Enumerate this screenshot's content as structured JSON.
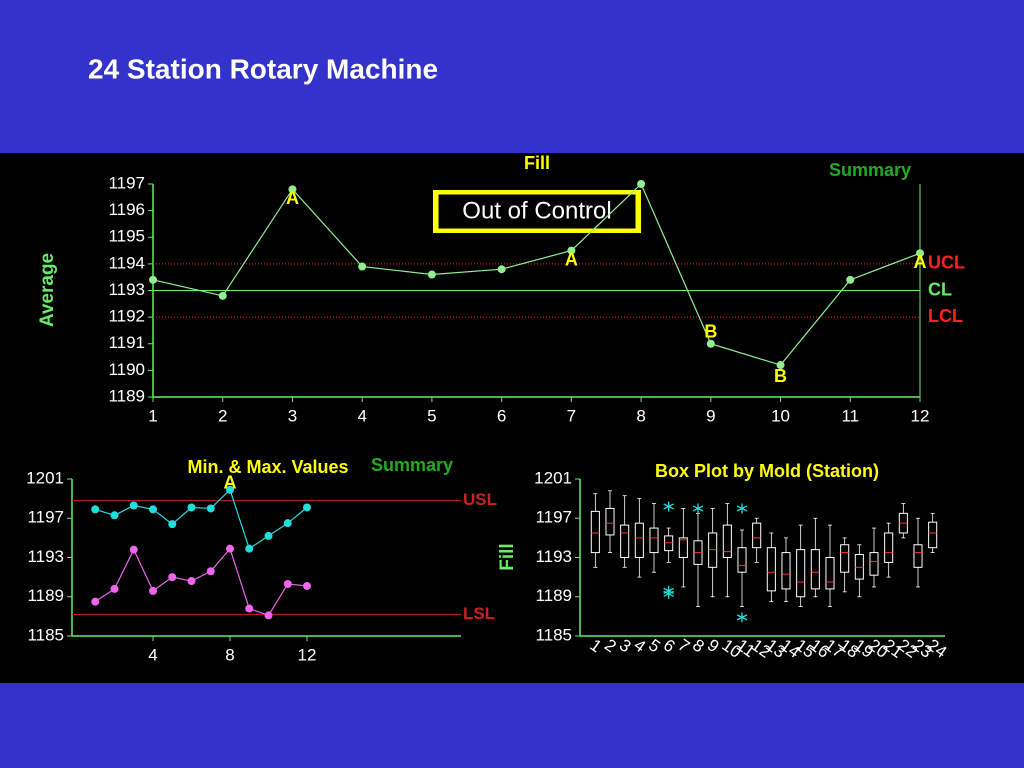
{
  "header": {
    "title": "24 Station Rotary Machine"
  },
  "chart_data": [
    {
      "type": "line",
      "title": "Fill",
      "note": "Summary",
      "y_label": "Average",
      "callout": "Out of Control",
      "x": [
        1,
        2,
        3,
        4,
        5,
        6,
        7,
        8,
        9,
        10,
        11,
        12
      ],
      "series": [
        {
          "color": "#90ee90",
          "values": [
            1193.4,
            1192.8,
            1196.8,
            1193.9,
            1193.6,
            1193.8,
            1194.5,
            1197,
            1191,
            1190.2,
            1193.4,
            1194.4
          ]
        }
      ],
      "xlim": [
        1,
        12
      ],
      "xticks": [
        1,
        2,
        3,
        4,
        5,
        6,
        7,
        8,
        9,
        10,
        11,
        12
      ],
      "ylim": [
        1189,
        1197
      ],
      "yticks": [
        1189,
        1190,
        1191,
        1192,
        1193,
        1194,
        1195,
        1196,
        1197
      ],
      "limits": [
        {
          "name": "UCL",
          "value": 1194,
          "color": "#ff2020",
          "style": "dotted"
        },
        {
          "name": "CL",
          "value": 1193,
          "color": "#66ee66",
          "style": "solid"
        },
        {
          "name": "LCL",
          "value": 1192,
          "color": "#ff2020",
          "style": "dotted"
        }
      ],
      "annotations": [
        {
          "text": "A",
          "x": 3
        },
        {
          "text": "A",
          "x": 7
        },
        {
          "text": "A",
          "x": 12
        },
        {
          "text": "B",
          "x": 9
        },
        {
          "text": "B",
          "x": 10
        }
      ]
    },
    {
      "type": "line",
      "title": "Min. & Max. Values",
      "note": "Summary",
      "x": [
        1,
        2,
        3,
        4,
        5,
        6,
        7,
        8,
        9,
        10,
        11,
        12
      ],
      "series": [
        {
          "color": "#22dddd",
          "values": [
            1197.9,
            1197.3,
            1198.3,
            1197.9,
            1196.4,
            1198.1,
            1198,
            1199.9,
            1193.9,
            1195.2,
            1196.5,
            1198.1
          ]
        },
        {
          "color": "#ee66ee",
          "values": [
            1188.5,
            1189.8,
            1193.8,
            1189.6,
            1191,
            1190.6,
            1191.6,
            1193.9,
            1187.8,
            1187.1,
            1190.3,
            1190.1
          ]
        }
      ],
      "xlim": [
        0,
        20
      ],
      "xticks": [
        4,
        8,
        12
      ],
      "ylim": [
        1185,
        1201
      ],
      "yticks": [
        1185,
        1189,
        1193,
        1197,
        1201
      ],
      "limits": [
        {
          "name": "USL",
          "value": 1198.8,
          "color": "#cc2020",
          "style": "solid"
        },
        {
          "name": "LSL",
          "value": 1187.2,
          "color": "#cc2020",
          "style": "solid"
        }
      ],
      "annotations": [
        {
          "text": "A",
          "x": 8
        }
      ]
    },
    {
      "type": "box",
      "title": "Box Plot by Mold (Station)",
      "y_label": "Fill",
      "categories": [
        "1",
        "2",
        "3",
        "4",
        "5",
        "6",
        "7",
        "8",
        "9",
        "10",
        "11",
        "12",
        "13",
        "14",
        "15",
        "16",
        "17",
        "18",
        "19",
        "20",
        "21",
        "22",
        "23",
        "24"
      ],
      "ylim": [
        1185,
        1201
      ],
      "yticks": [
        1185,
        1189,
        1193,
        1197,
        1201
      ],
      "box_color": "#ffffff",
      "median_color": "#ff3030",
      "outlier_color": "#22dddd",
      "boxes": [
        {
          "low": 1192,
          "q1": 1193.5,
          "median": 1195.5,
          "q3": 1197.7,
          "high": 1199.5,
          "outliers": []
        },
        {
          "low": 1193.5,
          "q1": 1195.3,
          "median": 1196.5,
          "q3": 1198,
          "high": 1199.8,
          "outliers": []
        },
        {
          "low": 1192,
          "q1": 1193,
          "median": 1195.5,
          "q3": 1196.3,
          "high": 1199.3,
          "outliers": []
        },
        {
          "low": 1191,
          "q1": 1193,
          "median": 1195,
          "q3": 1196.5,
          "high": 1199,
          "outliers": []
        },
        {
          "low": 1191.5,
          "q1": 1193.5,
          "median": 1195,
          "q3": 1196,
          "high": 1198.5,
          "outliers": []
        },
        {
          "low": 1192.5,
          "q1": 1193.7,
          "median": 1194.5,
          "q3": 1195.2,
          "high": 1196,
          "outliers": [
            1198.2,
            1189.6,
            1189.3
          ]
        },
        {
          "low": 1190,
          "q1": 1193,
          "median": 1194.8,
          "q3": 1195,
          "high": 1198,
          "outliers": []
        },
        {
          "low": 1188,
          "q1": 1192.3,
          "median": 1193.5,
          "q3": 1194.7,
          "high": 1197.5,
          "outliers": [
            1198
          ]
        },
        {
          "low": 1189,
          "q1": 1192,
          "median": 1193.8,
          "q3": 1195.5,
          "high": 1198,
          "outliers": []
        },
        {
          "low": 1189,
          "q1": 1193,
          "median": 1193.6,
          "q3": 1196.3,
          "high": 1198.5,
          "outliers": []
        },
        {
          "low": 1188,
          "q1": 1191.5,
          "median": 1192.2,
          "q3": 1194,
          "high": 1195.8,
          "outliers": [
            1198,
            1186.9
          ]
        },
        {
          "low": 1192.5,
          "q1": 1194,
          "median": 1195,
          "q3": 1196.5,
          "high": 1197,
          "outliers": []
        },
        {
          "low": 1188.5,
          "q1": 1189.6,
          "median": 1191.5,
          "q3": 1194,
          "high": 1195.5,
          "outliers": []
        },
        {
          "low": 1188.5,
          "q1": 1189.8,
          "median": 1191.3,
          "q3": 1193.5,
          "high": 1195,
          "outliers": []
        },
        {
          "low": 1188,
          "q1": 1189,
          "median": 1190.5,
          "q3": 1193.8,
          "high": 1196.3,
          "outliers": []
        },
        {
          "low": 1189,
          "q1": 1189.8,
          "median": 1191.5,
          "q3": 1193.8,
          "high": 1197,
          "outliers": []
        },
        {
          "low": 1188,
          "q1": 1189.8,
          "median": 1190.5,
          "q3": 1193,
          "high": 1196.3,
          "outliers": []
        },
        {
          "low": 1189.5,
          "q1": 1191.5,
          "median": 1193.5,
          "q3": 1194.3,
          "high": 1195,
          "outliers": []
        },
        {
          "low": 1189,
          "q1": 1190.8,
          "median": 1192,
          "q3": 1193.3,
          "high": 1194.3,
          "outliers": []
        },
        {
          "low": 1190,
          "q1": 1191.2,
          "median": 1192.6,
          "q3": 1193.5,
          "high": 1196,
          "outliers": []
        },
        {
          "low": 1191,
          "q1": 1192.5,
          "median": 1193.5,
          "q3": 1195.5,
          "high": 1196.5,
          "outliers": []
        },
        {
          "low": 1195,
          "q1": 1195.5,
          "median": 1196.5,
          "q3": 1197.5,
          "high": 1198.5,
          "outliers": []
        },
        {
          "low": 1190,
          "q1": 1192,
          "median": 1193.5,
          "q3": 1194.3,
          "high": 1197,
          "outliers": []
        },
        {
          "low": 1193.5,
          "q1": 1194,
          "median": 1195.5,
          "q3": 1196.6,
          "high": 1197.5,
          "outliers": []
        }
      ]
    }
  ]
}
